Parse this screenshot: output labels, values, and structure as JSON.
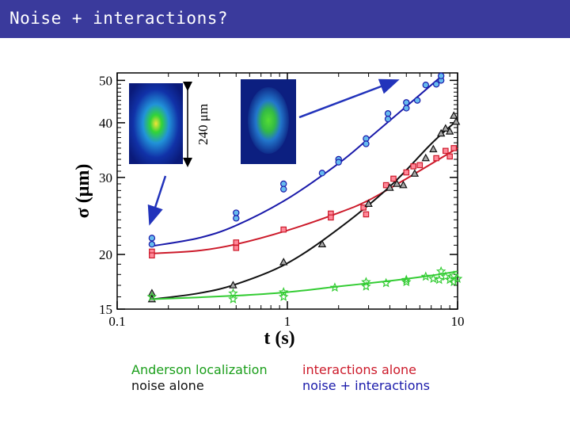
{
  "header": {
    "title": "Noise + interactions?"
  },
  "legend": {
    "anderson": {
      "label": "Anderson localization",
      "color": "#1a9e1a"
    },
    "noise_alone": {
      "label": "noise alone",
      "color": "#111111"
    },
    "interactions_alone": {
      "label": "interactions alone",
      "color": "#cc1a2a"
    },
    "noise_interactions": {
      "label": "noise + interactions",
      "color": "#1a1aaa"
    }
  },
  "inset": {
    "scale_label": "240 μm"
  },
  "chart_data": {
    "type": "scatter",
    "title": "",
    "xlabel": "t (s)",
    "ylabel": "σ (μm)",
    "xscale": "log",
    "yscale": "log",
    "xlim": [
      0.1,
      10
    ],
    "ylim": [
      15,
      52
    ],
    "xticks": [
      0.1,
      1,
      10
    ],
    "xtick_labels": [
      "0.1",
      "1",
      "10"
    ],
    "yticks": [
      15,
      20,
      30,
      40,
      50
    ],
    "ytick_labels": [
      "15",
      "20",
      "30",
      "40",
      "50"
    ],
    "grid": false,
    "series": [
      {
        "color": "#1a1aaa",
        "marker": "circle",
        "points": [
          [
            0.16,
            21.8
          ],
          [
            0.16,
            21.1
          ],
          [
            0.5,
            24.2
          ],
          [
            0.5,
            24.9
          ],
          [
            0.95,
            29.0
          ],
          [
            0.95,
            28.2
          ],
          [
            1.6,
            30.7
          ],
          [
            2.0,
            33.0
          ],
          [
            2.0,
            32.5
          ],
          [
            2.9,
            36.8
          ],
          [
            2.9,
            35.8
          ],
          [
            3.9,
            42.0
          ],
          [
            3.9,
            40.8
          ],
          [
            5.0,
            43.2
          ],
          [
            5.0,
            44.5
          ],
          [
            5.8,
            45.0
          ],
          [
            6.5,
            48.8
          ],
          [
            7.5,
            49.0
          ],
          [
            8.0,
            50.0
          ],
          [
            8.0,
            51.2
          ]
        ],
        "fit": [
          [
            0.16,
            20.9
          ],
          [
            0.3,
            21.8
          ],
          [
            0.5,
            23.3
          ],
          [
            1.0,
            26.8
          ],
          [
            2.0,
            32.3
          ],
          [
            3.0,
            36.8
          ],
          [
            5.0,
            43.6
          ],
          [
            8.0,
            51.0
          ]
        ]
      },
      {
        "color": "#cc1a2a",
        "marker": "square",
        "points": [
          [
            0.16,
            20.3
          ],
          [
            0.16,
            19.9
          ],
          [
            0.5,
            21.3
          ],
          [
            0.5,
            20.7
          ],
          [
            0.95,
            22.8
          ],
          [
            1.8,
            24.8
          ],
          [
            1.8,
            24.3
          ],
          [
            2.8,
            25.6
          ],
          [
            2.9,
            24.7
          ],
          [
            3.8,
            28.8
          ],
          [
            4.2,
            29.8
          ],
          [
            5.0,
            30.8
          ],
          [
            5.5,
            31.8
          ],
          [
            6.0,
            32.0
          ],
          [
            7.5,
            33.2
          ],
          [
            8.5,
            34.5
          ],
          [
            9.0,
            33.5
          ],
          [
            9.5,
            35.0
          ]
        ],
        "fit": [
          [
            0.16,
            20.1
          ],
          [
            0.3,
            20.4
          ],
          [
            0.5,
            21.1
          ],
          [
            1.0,
            22.7
          ],
          [
            2.0,
            24.9
          ],
          [
            3.0,
            26.6
          ],
          [
            5.0,
            29.8
          ],
          [
            10.0,
            35.0
          ]
        ]
      },
      {
        "color": "#111111",
        "marker": "triangle",
        "points": [
          [
            0.16,
            16.3
          ],
          [
            0.16,
            15.8
          ],
          [
            0.48,
            17.0
          ],
          [
            0.95,
            19.2
          ],
          [
            1.6,
            21.1
          ],
          [
            3.0,
            26.1
          ],
          [
            4.0,
            28.4
          ],
          [
            4.4,
            29.0
          ],
          [
            4.8,
            28.8
          ],
          [
            5.6,
            30.6
          ],
          [
            6.5,
            33.2
          ],
          [
            7.2,
            34.8
          ],
          [
            8.0,
            37.8
          ],
          [
            8.5,
            38.8
          ],
          [
            9.0,
            38.2
          ],
          [
            9.5,
            41.5
          ],
          [
            9.8,
            40.2
          ]
        ],
        "fit": [
          [
            0.16,
            15.8
          ],
          [
            0.3,
            16.3
          ],
          [
            0.5,
            17.1
          ],
          [
            1.0,
            19.1
          ],
          [
            2.0,
            22.9
          ],
          [
            4.0,
            28.6
          ],
          [
            7.0,
            35.8
          ],
          [
            10.0,
            40.6
          ]
        ]
      },
      {
        "color": "#33cc33",
        "marker": "star",
        "points": [
          [
            0.16,
            16.0
          ],
          [
            0.48,
            16.3
          ],
          [
            0.48,
            15.8
          ],
          [
            0.95,
            16.4
          ],
          [
            0.95,
            16.0
          ],
          [
            1.9,
            16.8
          ],
          [
            2.9,
            17.3
          ],
          [
            2.9,
            16.9
          ],
          [
            3.8,
            17.2
          ],
          [
            5.0,
            17.5
          ],
          [
            5.0,
            17.3
          ],
          [
            6.5,
            17.8
          ],
          [
            7.2,
            17.6
          ],
          [
            7.8,
            17.5
          ],
          [
            8.5,
            17.8
          ],
          [
            8.0,
            18.3
          ],
          [
            9.0,
            17.5
          ],
          [
            9.5,
            17.9
          ],
          [
            9.5,
            17.3
          ],
          [
            10.0,
            17.6
          ]
        ],
        "fit": [
          [
            0.16,
            15.8
          ],
          [
            0.5,
            16.1
          ],
          [
            1.0,
            16.4
          ],
          [
            2.0,
            16.9
          ],
          [
            4.0,
            17.4
          ],
          [
            7.0,
            17.9
          ],
          [
            10.0,
            18.3
          ]
        ]
      }
    ]
  }
}
